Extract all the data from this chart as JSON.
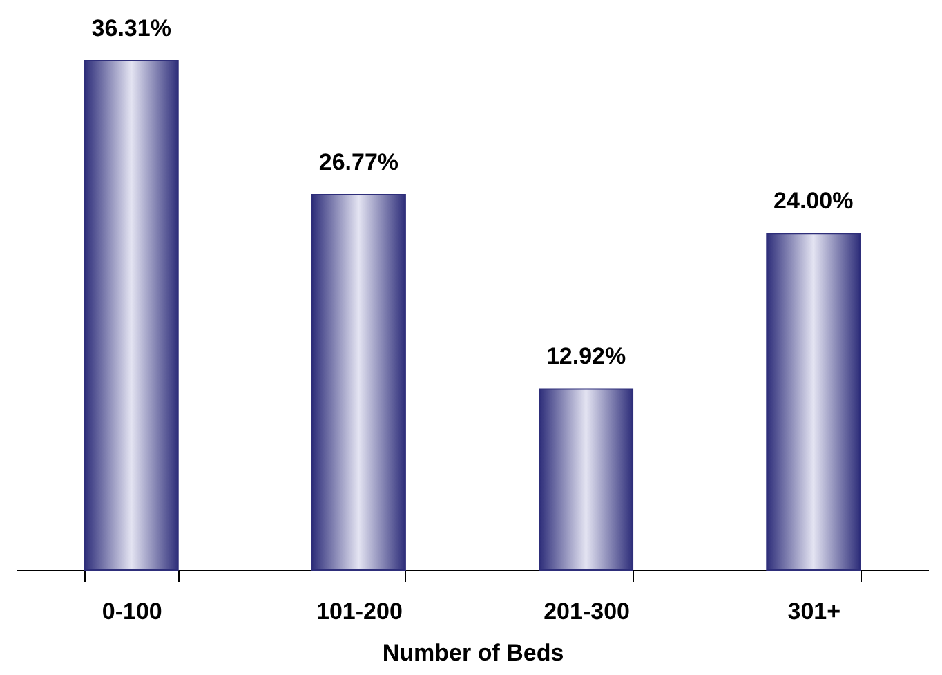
{
  "chart_data": {
    "type": "bar",
    "xlabel": "Number of Beds",
    "categories": [
      "0-100",
      "101-200",
      "201-300",
      "301+"
    ],
    "values": [
      36.31,
      26.77,
      12.92,
      24.0
    ],
    "value_labels": [
      "36.31%",
      "26.77%",
      "12.92%",
      "24.00%"
    ],
    "color": "#2e2e7a",
    "grid": false
  }
}
